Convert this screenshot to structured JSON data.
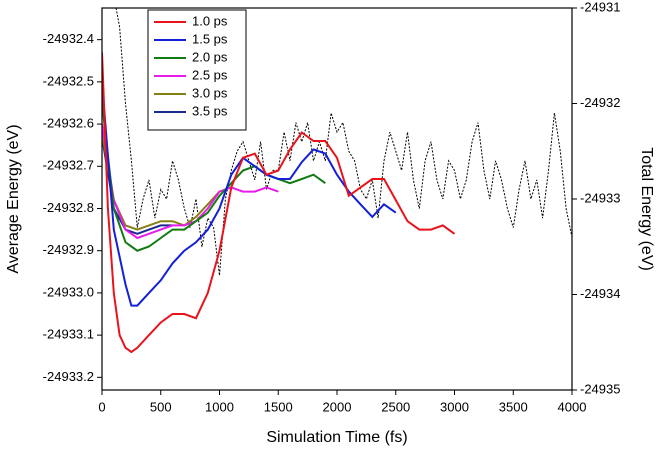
{
  "chart_data": {
    "type": "line",
    "xlabel": "Simulation Time (fs)",
    "ylabel": "Average Energy (eV)",
    "y2label": "Total Energy (eV)",
    "xlim": [
      0,
      4000
    ],
    "xticks": [
      0,
      500,
      1000,
      1500,
      2000,
      2500,
      3000,
      3500,
      4000
    ],
    "ylim": [
      -24933.23,
      -24932.325
    ],
    "yticks": [
      -24932.4,
      -24932.5,
      -24932.6,
      -24932.7,
      -24932.8,
      -24932.9,
      {
        "value": -24933,
        "label": "-24933.0"
      },
      -24933.1,
      -24933.2
    ],
    "y2lim": [
      -24935,
      -24931
    ],
    "y2ticks": [
      -24931,
      -24932,
      -24933,
      -24934,
      -24935
    ],
    "legend": "upper left",
    "series": [
      {
        "name": "1.0 ps",
        "color": "#e8141c",
        "x": [
          0,
          50,
          100,
          150,
          200,
          250,
          300,
          400,
          500,
          600,
          700,
          800,
          900,
          1000,
          1100,
          1200,
          1300,
          1400,
          1500,
          1600,
          1700,
          1800,
          1900,
          2000,
          2100,
          2200,
          2300,
          2400,
          2500,
          2600,
          2700,
          2800,
          2900,
          3000
        ],
        "values": [
          -24932.43,
          -24932.8,
          -24933.0,
          -24933.1,
          -24933.13,
          -24933.14,
          -24933.13,
          -24933.1,
          -24933.07,
          -24933.05,
          -24933.05,
          -24933.06,
          -24933.0,
          -24932.9,
          -24932.75,
          -24932.68,
          -24932.67,
          -24932.72,
          -24932.71,
          -24932.66,
          -24932.62,
          -24932.64,
          -24932.64,
          -24932.68,
          -24932.77,
          -24932.75,
          -24932.73,
          -24932.73,
          -24932.78,
          -24932.83,
          -24932.85,
          -24932.85,
          -24932.84,
          -24932.86
        ]
      },
      {
        "name": "1.5 ps",
        "color": "#1420d8",
        "x": [
          0,
          100,
          200,
          250,
          300,
          400,
          500,
          600,
          700,
          800,
          900,
          1000,
          1100,
          1200,
          1300,
          1400,
          1500,
          1600,
          1700,
          1800,
          1900,
          2000,
          2100,
          2200,
          2300,
          2400,
          2500
        ],
        "values": [
          -24932.5,
          -24932.85,
          -24932.98,
          -24933.03,
          -24933.03,
          -24933.0,
          -24932.97,
          -24932.93,
          -24932.9,
          -24932.88,
          -24932.85,
          -24932.8,
          -24932.72,
          -24932.68,
          -24932.7,
          -24932.72,
          -24932.73,
          -24932.73,
          -24932.69,
          -24932.66,
          -24932.67,
          -24932.72,
          -24932.76,
          -24932.79,
          -24932.82,
          -24932.79,
          -24932.81
        ]
      },
      {
        "name": "2.0 ps",
        "color": "#137a13",
        "x": [
          0,
          100,
          200,
          300,
          400,
          500,
          600,
          700,
          800,
          900,
          1000,
          1100,
          1200,
          1300,
          1400,
          1500,
          1600,
          1700,
          1800,
          1900
        ],
        "values": [
          -24932.55,
          -24932.8,
          -24932.88,
          -24932.9,
          -24932.89,
          -24932.87,
          -24932.85,
          -24932.85,
          -24932.83,
          -24932.81,
          -24932.77,
          -24932.74,
          -24932.71,
          -24932.7,
          -24932.72,
          -24932.73,
          -24932.74,
          -24932.73,
          -24932.72,
          -24932.74
        ]
      },
      {
        "name": "2.5 ps",
        "color": "#e81ce8",
        "x": [
          0,
          100,
          200,
          300,
          400,
          500,
          600,
          700,
          800,
          900,
          1000,
          1100,
          1200,
          1300,
          1400,
          1500
        ],
        "values": [
          -24932.6,
          -24932.78,
          -24932.85,
          -24932.87,
          -24932.86,
          -24932.85,
          -24932.84,
          -24932.84,
          -24932.83,
          -24932.8,
          -24932.76,
          -24932.75,
          -24932.76,
          -24932.76,
          -24932.75,
          -24932.76
        ]
      },
      {
        "name": "3.0 ps",
        "color": "#858014",
        "x": [
          0,
          100,
          200,
          300,
          400,
          500,
          600,
          700,
          800,
          900,
          1000
        ],
        "values": [
          -24932.62,
          -24932.78,
          -24932.84,
          -24932.85,
          -24932.84,
          -24932.83,
          -24932.83,
          -24932.84,
          -24932.82,
          -24932.79,
          -24932.76
        ]
      },
      {
        "name": "3.5 ps",
        "color": "#1a2a90",
        "x": [
          0,
          100,
          200,
          300,
          400,
          500,
          600
        ],
        "values": [
          -24932.63,
          -24932.8,
          -24932.85,
          -24932.86,
          -24932.85,
          -24932.84,
          -24932.84
        ]
      },
      {
        "color": "#000000",
        "axis": "y2",
        "dashed": true,
        "x": [
          120,
          150,
          200,
          250,
          300,
          350,
          400,
          450,
          500,
          550,
          600,
          650,
          700,
          750,
          800,
          850,
          900,
          950,
          1000,
          1050,
          1100,
          1150,
          1200,
          1250,
          1300,
          1350,
          1400,
          1450,
          1500,
          1550,
          1600,
          1650,
          1700,
          1750,
          1800,
          1850,
          1900,
          1950,
          2000,
          2050,
          2100,
          2150,
          2200,
          2250,
          2300,
          2350,
          2400,
          2450,
          2500,
          2550,
          2600,
          2650,
          2700,
          2750,
          2800,
          2850,
          2900,
          2950,
          3000,
          3050,
          3100,
          3150,
          3200,
          3250,
          3300,
          3350,
          3400,
          3450,
          3500,
          3550,
          3600,
          3650,
          3700,
          3750,
          3800,
          3850,
          3900,
          3950,
          4000
        ],
        "values": [
          -24931.0,
          -24931.2,
          -24932.0,
          -24932.6,
          -24933.3,
          -24933.0,
          -24932.8,
          -24933.2,
          -24932.9,
          -24933.0,
          -24932.6,
          -24932.8,
          -24933.1,
          -24933.3,
          -24933.0,
          -24933.5,
          -24933.2,
          -24933.3,
          -24933.8,
          -24933.0,
          -24932.7,
          -24932.5,
          -24932.4,
          -24932.6,
          -24932.8,
          -24932.4,
          -24932.9,
          -24932.7,
          -24932.7,
          -24932.3,
          -24932.6,
          -24932.2,
          -24932.4,
          -24932.2,
          -24932.6,
          -24932.4,
          -24932.6,
          -24932.1,
          -24932.3,
          -24932.2,
          -24932.5,
          -24932.6,
          -24932.9,
          -24933.0,
          -24932.8,
          -24933.2,
          -24932.6,
          -24932.3,
          -24932.5,
          -24932.7,
          -24932.3,
          -24932.8,
          -24933.1,
          -24932.6,
          -24932.4,
          -24932.8,
          -24933.0,
          -24932.6,
          -24932.7,
          -24933.0,
          -24932.8,
          -24932.4,
          -24932.2,
          -24932.7,
          -24933.0,
          -24932.6,
          -24932.8,
          -24933.1,
          -24933.3,
          -24932.9,
          -24932.6,
          -24933.0,
          -24932.8,
          -24933.2,
          -24932.7,
          -24932.1,
          -24932.5,
          -24933.1,
          -24933.4
        ]
      }
    ]
  }
}
